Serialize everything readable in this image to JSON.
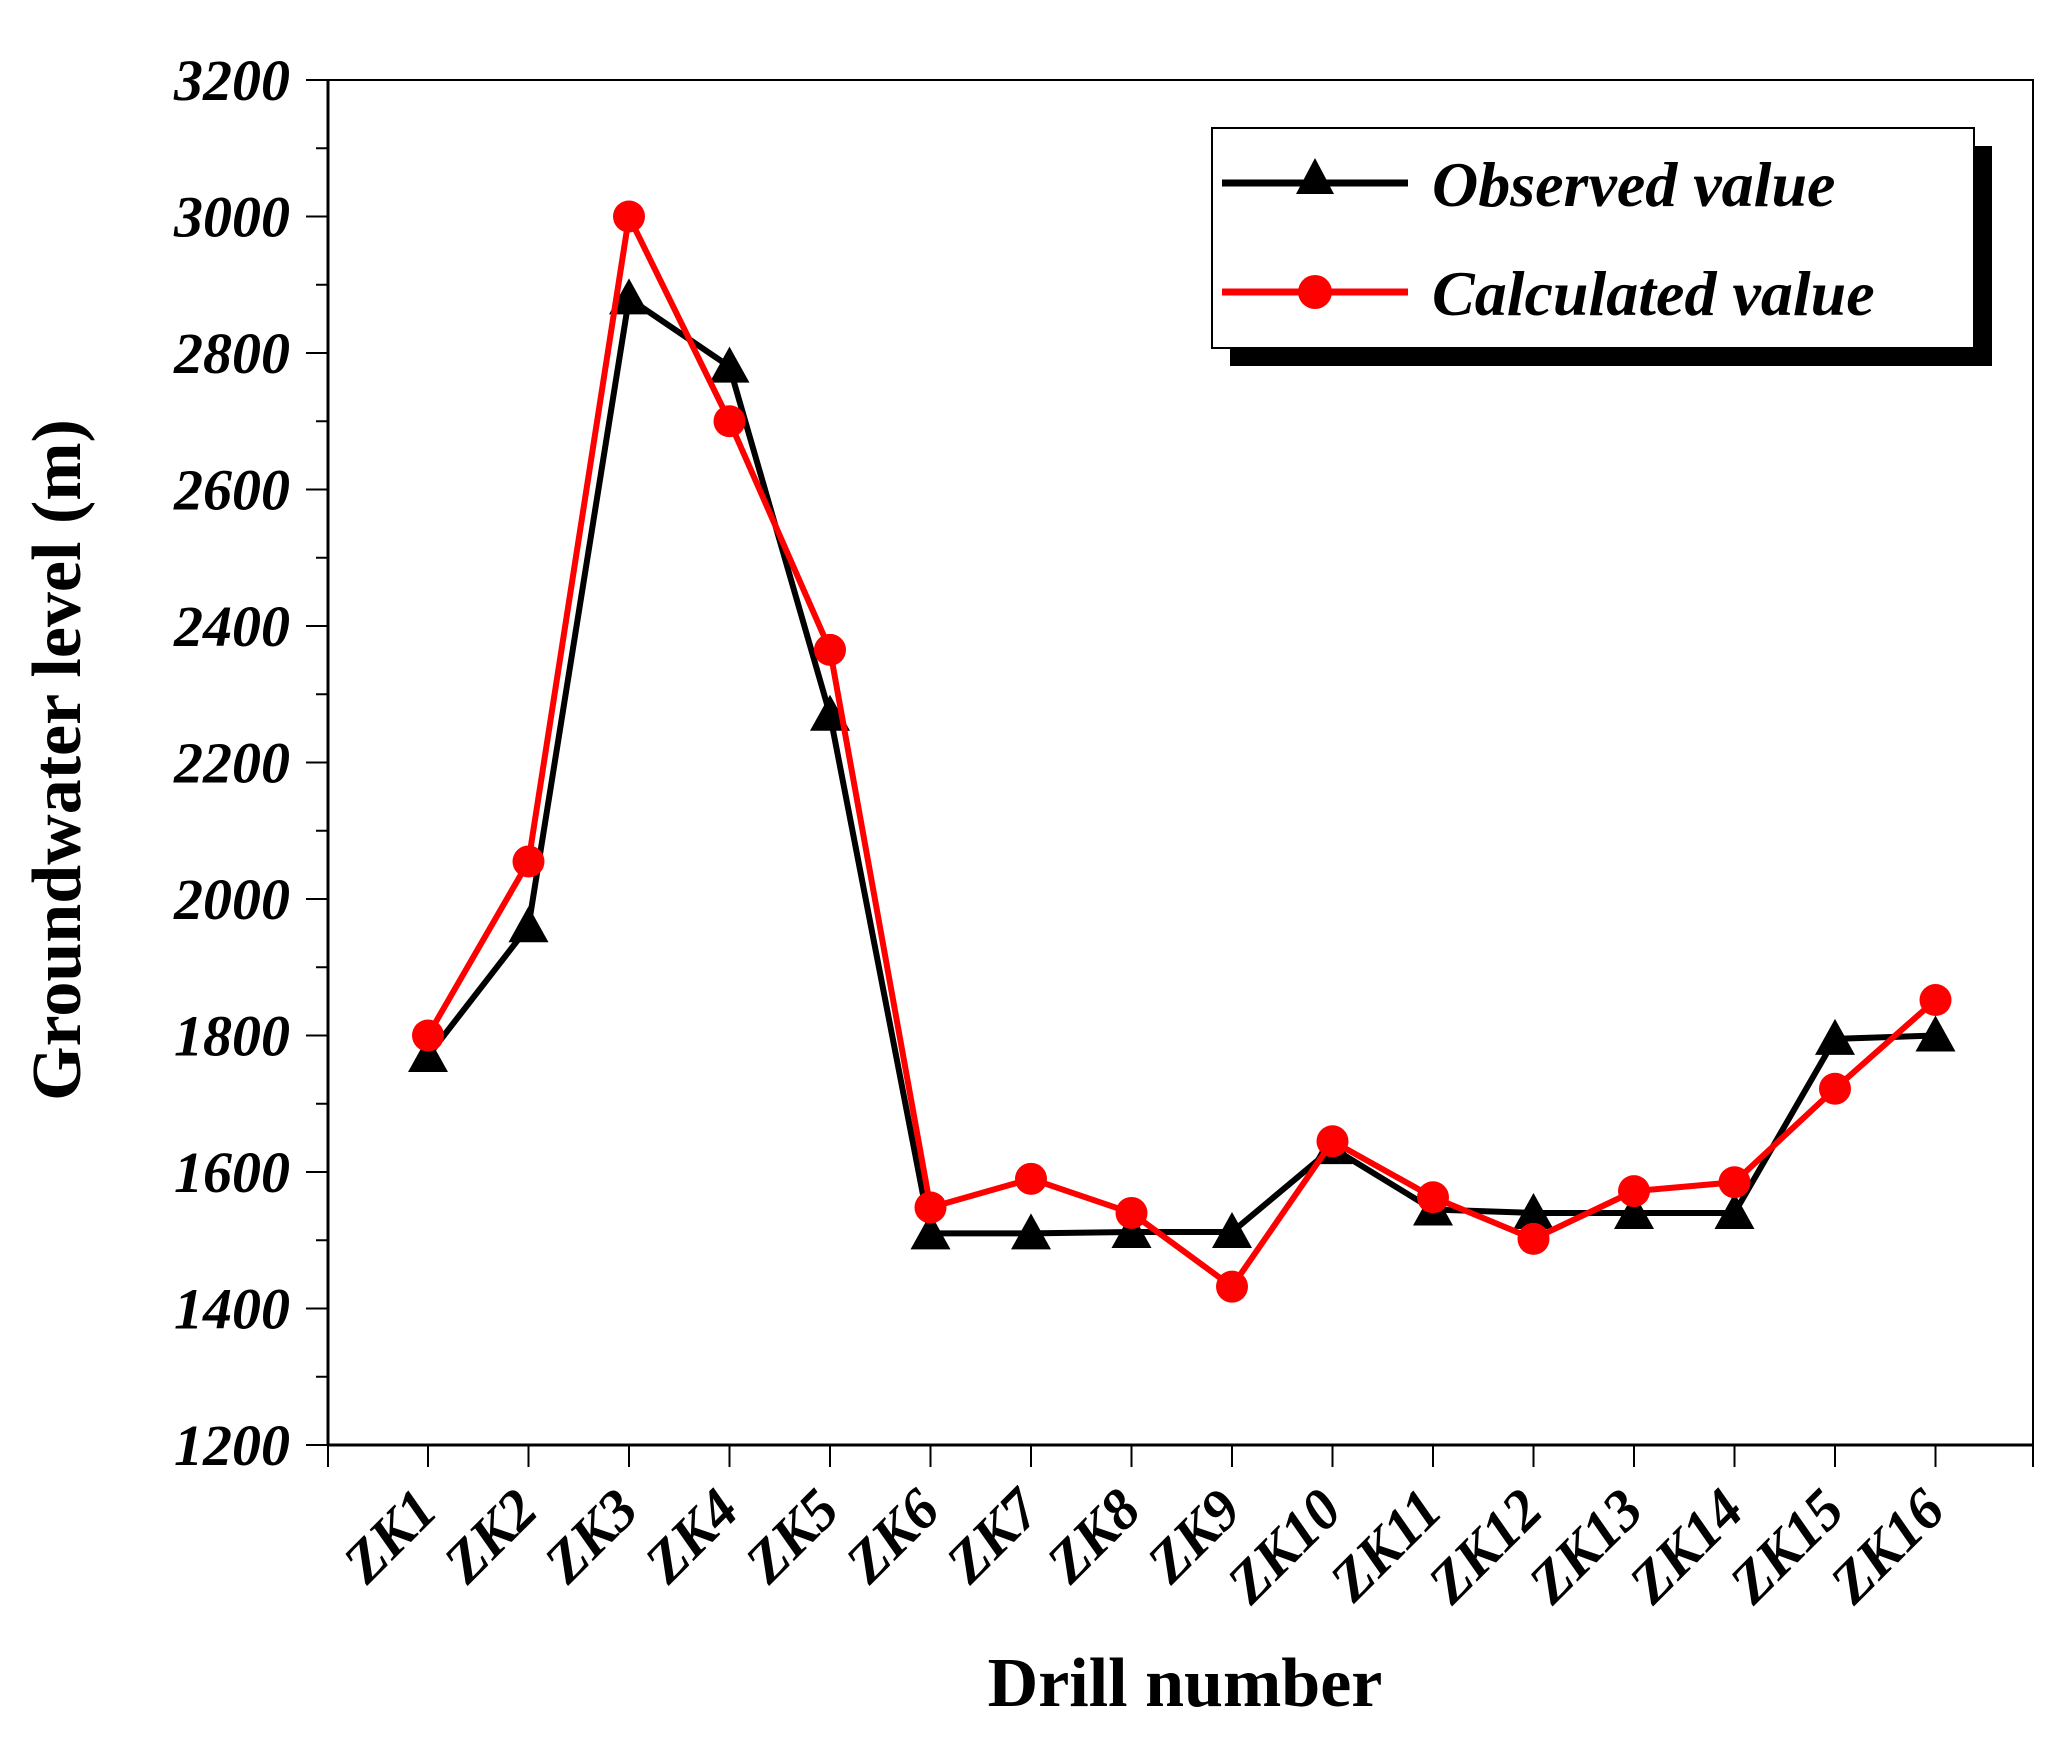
{
  "chart_data": {
    "type": "line",
    "title": "",
    "xlabel": "Drill number",
    "ylabel": "Groundwater level (m)",
    "ylim": [
      1200,
      3200
    ],
    "yticks": [
      1200,
      1400,
      1600,
      1800,
      2000,
      2200,
      2400,
      2600,
      2800,
      3000,
      3200
    ],
    "grid": false,
    "legend_position": "top-right",
    "categories": [
      "ZK1",
      "ZK2",
      "ZK3",
      "ZK4",
      "ZK5",
      "ZK6",
      "ZK7",
      "ZK8",
      "ZK9",
      "ZK10",
      "ZK11",
      "ZK12",
      "ZK13",
      "ZK14",
      "ZK15",
      "ZK16"
    ],
    "series": [
      {
        "name": "Observed value",
        "color": "#000000",
        "marker": "triangle",
        "values": [
          1770,
          1960,
          2880,
          2780,
          2270,
          1510,
          1510,
          1512,
          1512,
          1635,
          1545,
          1540,
          1540,
          1540,
          1795,
          1800
        ]
      },
      {
        "name": "Calculated value",
        "color": "#ff0000",
        "marker": "circle",
        "values": [
          1800,
          2055,
          3000,
          2700,
          2365,
          1548,
          1590,
          1540,
          1432,
          1645,
          1563,
          1502,
          1572,
          1585,
          1722,
          1852
        ]
      }
    ]
  }
}
